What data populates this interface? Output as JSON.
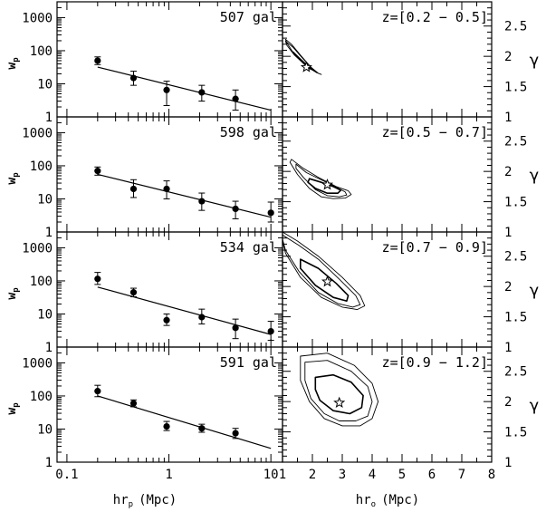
{
  "chart_data": {
    "type": "scatter",
    "left_column": {
      "x_label": "hr",
      "x_label_sub": "p",
      "x_label_unit": "(Mpc)",
      "y_label": "w",
      "y_label_sub": "p",
      "x_scale": "log",
      "y_scale": "log",
      "xlim": [
        0.08,
        13
      ],
      "ylim": [
        1,
        3000
      ],
      "x_ticks": [
        "0.1",
        "1",
        "10"
      ],
      "y_ticks": [
        "1",
        "10",
        "100",
        "1000"
      ]
    },
    "right_column": {
      "x_label": "hr",
      "x_label_sub": "o",
      "x_label_unit": "(Mpc)",
      "y_label": "γ",
      "xlim": [
        1,
        8
      ],
      "ylim": [
        1,
        2.9
      ],
      "x_ticks": [
        "1",
        "2",
        "3",
        "4",
        "5",
        "6",
        "7",
        "8"
      ],
      "y_ticks": [
        "1",
        "1.5",
        "2",
        "2.5"
      ]
    },
    "panels": [
      {
        "count_label": "507 gal",
        "z_label": "z=[0.2 − 0.5]",
        "points": [
          {
            "x": 0.2,
            "y": 50,
            "ylo": 38,
            "yhi": 65
          },
          {
            "x": 0.45,
            "y": 15,
            "ylo": 9,
            "yhi": 24
          },
          {
            "x": 0.95,
            "y": 6.5,
            "ylo": 2.2,
            "yhi": 12
          },
          {
            "x": 2.1,
            "y": 5.5,
            "ylo": 3,
            "yhi": 9
          },
          {
            "x": 4.5,
            "y": 3.5,
            "ylo": 1.6,
            "yhi": 6.5
          }
        ],
        "fit": {
          "x": [
            0.2,
            10
          ],
          "y": [
            32,
            1.6
          ]
        },
        "best_fit": {
          "r0": 1.8,
          "gamma": 1.82
        },
        "contours": [
          [
            [
              1.1,
              2.28
            ],
            [
              1.3,
              2.2
            ],
            [
              1.6,
              2.02
            ],
            [
              1.95,
              1.82
            ],
            [
              2.2,
              1.72
            ],
            [
              2.3,
              1.7
            ],
            [
              2.15,
              1.73
            ],
            [
              1.8,
              1.84
            ],
            [
              1.4,
              2.03
            ],
            [
              1.15,
              2.22
            ]
          ],
          [
            [
              1.1,
              2.25
            ],
            [
              1.35,
              2.15
            ],
            [
              1.65,
              1.98
            ],
            [
              1.95,
              1.82
            ],
            [
              2.15,
              1.73
            ],
            [
              2.05,
              1.76
            ],
            [
              1.75,
              1.86
            ],
            [
              1.4,
              2.02
            ],
            [
              1.15,
              2.18
            ]
          ],
          [
            [
              1.35,
              2.07
            ],
            [
              1.6,
              1.95
            ],
            [
              1.85,
              1.84
            ],
            [
              2.0,
              1.78
            ],
            [
              1.9,
              1.8
            ],
            [
              1.65,
              1.92
            ],
            [
              1.4,
              2.04
            ]
          ]
        ]
      },
      {
        "count_label": "598 gal",
        "z_label": "z=[0.5 − 0.7]",
        "points": [
          {
            "x": 0.2,
            "y": 70,
            "ylo": 52,
            "yhi": 92
          },
          {
            "x": 0.45,
            "y": 20,
            "ylo": 11,
            "yhi": 38
          },
          {
            "x": 0.95,
            "y": 20,
            "ylo": 10,
            "yhi": 35
          },
          {
            "x": 2.1,
            "y": 8.5,
            "ylo": 4.5,
            "yhi": 15
          },
          {
            "x": 4.5,
            "y": 5,
            "ylo": 2.5,
            "yhi": 8.5
          },
          {
            "x": 10,
            "y": 3.8,
            "ylo": 2,
            "yhi": 8
          }
        ],
        "fit": {
          "x": [
            0.2,
            10
          ],
          "y": [
            55,
            2.8
          ]
        },
        "best_fit": {
          "r0": 2.5,
          "gamma": 1.78
        },
        "contours": [
          [
            [
              1.3,
              2.2
            ],
            [
              1.7,
              2.05
            ],
            [
              2.2,
              1.9
            ],
            [
              2.8,
              1.75
            ],
            [
              3.2,
              1.68
            ],
            [
              3.3,
              1.62
            ],
            [
              3.1,
              1.56
            ],
            [
              2.7,
              1.55
            ],
            [
              2.3,
              1.58
            ],
            [
              1.9,
              1.72
            ],
            [
              1.5,
              1.95
            ],
            [
              1.25,
              2.15
            ]
          ],
          [
            [
              1.45,
              2.12
            ],
            [
              1.8,
              1.98
            ],
            [
              2.3,
              1.86
            ],
            [
              2.8,
              1.74
            ],
            [
              3.1,
              1.66
            ],
            [
              3.15,
              1.61
            ],
            [
              2.9,
              1.58
            ],
            [
              2.5,
              1.6
            ],
            [
              2.1,
              1.7
            ],
            [
              1.7,
              1.9
            ],
            [
              1.45,
              2.05
            ]
          ],
          [
            [
              1.9,
              1.88
            ],
            [
              2.3,
              1.82
            ],
            [
              2.7,
              1.75
            ],
            [
              2.95,
              1.69
            ],
            [
              2.85,
              1.64
            ],
            [
              2.5,
              1.64
            ],
            [
              2.1,
              1.72
            ],
            [
              1.85,
              1.82
            ]
          ]
        ]
      },
      {
        "count_label": "534 gal",
        "z_label": "z=[0.7 − 0.9]",
        "points": [
          {
            "x": 0.2,
            "y": 115,
            "ylo": 78,
            "yhi": 180
          },
          {
            "x": 0.45,
            "y": 45,
            "ylo": 33,
            "yhi": 60
          },
          {
            "x": 0.95,
            "y": 6.5,
            "ylo": 4.5,
            "yhi": 10
          },
          {
            "x": 2.1,
            "y": 8,
            "ylo": 5,
            "yhi": 14
          },
          {
            "x": 4.5,
            "y": 3.8,
            "ylo": 1.8,
            "yhi": 7
          },
          {
            "x": 10,
            "y": 3,
            "ylo": 1.6,
            "yhi": 6
          }
        ],
        "fit": {
          "x": [
            0.2,
            10
          ],
          "y": [
            65,
            2.4
          ]
        },
        "best_fit": {
          "r0": 2.5,
          "gamma": 2.08
        },
        "contours": [
          [
            [
              1.0,
              2.9
            ],
            [
              1.5,
              2.75
            ],
            [
              2.2,
              2.5
            ],
            [
              3.0,
              2.15
            ],
            [
              3.6,
              1.85
            ],
            [
              3.75,
              1.68
            ],
            [
              3.5,
              1.62
            ],
            [
              3.0,
              1.66
            ],
            [
              2.3,
              1.82
            ],
            [
              1.6,
              2.15
            ],
            [
              1.1,
              2.55
            ],
            [
              1.0,
              2.75
            ]
          ],
          [
            [
              1.0,
              2.85
            ],
            [
              1.55,
              2.68
            ],
            [
              2.2,
              2.45
            ],
            [
              2.9,
              2.12
            ],
            [
              3.45,
              1.85
            ],
            [
              3.6,
              1.7
            ],
            [
              3.35,
              1.66
            ],
            [
              2.85,
              1.72
            ],
            [
              2.2,
              1.9
            ],
            [
              1.55,
              2.25
            ],
            [
              1.1,
              2.6
            ],
            [
              1.0,
              2.78
            ]
          ],
          [
            [
              1.6,
              2.45
            ],
            [
              2.2,
              2.3
            ],
            [
              2.8,
              2.05
            ],
            [
              3.2,
              1.85
            ],
            [
              3.15,
              1.76
            ],
            [
              2.7,
              1.82
            ],
            [
              2.1,
              2.02
            ],
            [
              1.6,
              2.3
            ]
          ]
        ]
      },
      {
        "count_label": "591 gal",
        "z_label": "z=[0.9 − 1.2]",
        "points": [
          {
            "x": 0.2,
            "y": 140,
            "ylo": 95,
            "yhi": 210
          },
          {
            "x": 0.45,
            "y": 60,
            "ylo": 47,
            "yhi": 76
          },
          {
            "x": 0.95,
            "y": 12,
            "ylo": 9,
            "yhi": 17
          },
          {
            "x": 2.1,
            "y": 10.5,
            "ylo": 8,
            "yhi": 14
          },
          {
            "x": 4.5,
            "y": 7.5,
            "ylo": 5.2,
            "yhi": 10.5
          }
        ],
        "fit": {
          "x": [
            0.2,
            10
          ],
          "y": [
            100,
            2.6
          ]
        },
        "best_fit": {
          "r0": 2.9,
          "gamma": 1.98
        },
        "contours": [
          [
            [
              1.6,
              2.75
            ],
            [
              2.5,
              2.8
            ],
            [
              3.4,
              2.6
            ],
            [
              4.0,
              2.3
            ],
            [
              4.2,
              2.0
            ],
            [
              4.0,
              1.72
            ],
            [
              3.6,
              1.6
            ],
            [
              3.0,
              1.6
            ],
            [
              2.4,
              1.72
            ],
            [
              1.9,
              2.0
            ],
            [
              1.6,
              2.35
            ]
          ],
          [
            [
              1.75,
              2.65
            ],
            [
              2.5,
              2.68
            ],
            [
              3.3,
              2.5
            ],
            [
              3.85,
              2.25
            ],
            [
              4.0,
              2.0
            ],
            [
              3.85,
              1.76
            ],
            [
              3.45,
              1.68
            ],
            [
              2.9,
              1.68
            ],
            [
              2.4,
              1.8
            ],
            [
              1.95,
              2.05
            ],
            [
              1.75,
              2.35
            ]
          ],
          [
            [
              2.1,
              2.4
            ],
            [
              2.7,
              2.44
            ],
            [
              3.3,
              2.32
            ],
            [
              3.7,
              2.1
            ],
            [
              3.65,
              1.9
            ],
            [
              3.25,
              1.8
            ],
            [
              2.7,
              1.85
            ],
            [
              2.25,
              2.02
            ],
            [
              2.1,
              2.2
            ]
          ]
        ]
      }
    ]
  }
}
